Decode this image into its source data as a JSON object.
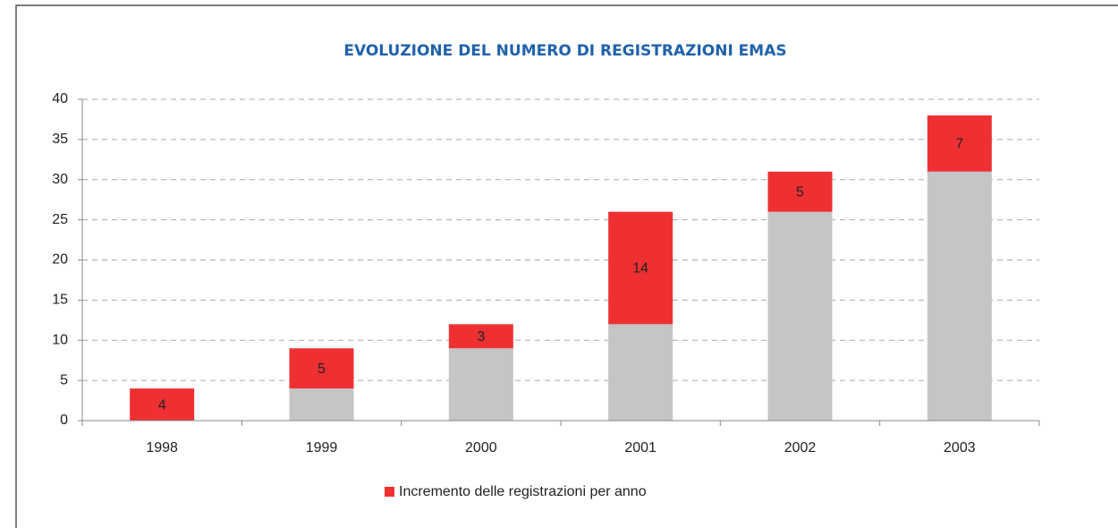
{
  "chart_data": {
    "type": "stacked_bar",
    "title": "EVOLUZIONE DEL NUMERO DI REGISTRAZIONI EMAS",
    "categories": [
      "1998",
      "1999",
      "2000",
      "2001",
      "2002",
      "2003"
    ],
    "series": [
      {
        "color": "#c3c5c6",
        "values": [
          0,
          4,
          9,
          12,
          26,
          31
        ]
      },
      {
        "name": "Incremento delle registrazioni per anno",
        "color": "#ee3033",
        "values": [
          4,
          5,
          3,
          14,
          5,
          7
        ],
        "labels": true
      }
    ],
    "ylim": [
      0,
      40
    ],
    "yticks": [
      0,
      5,
      10,
      15,
      20,
      25,
      30,
      35,
      40
    ],
    "grid": true,
    "legend": "bottom"
  }
}
